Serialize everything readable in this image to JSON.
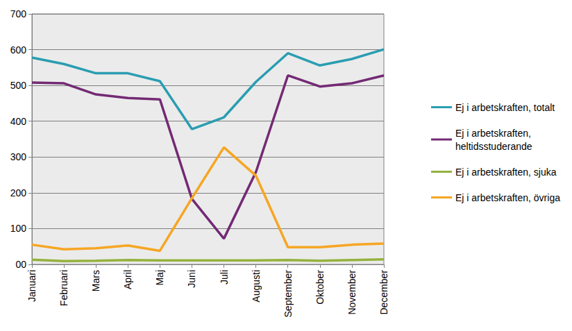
{
  "chart_data": {
    "type": "line",
    "categories": [
      "Januari",
      "Februari",
      "Mars",
      "April",
      "Maj",
      "Juni",
      "Juli",
      "Augusti",
      "September",
      "Oktober",
      "November",
      "December"
    ],
    "series": [
      {
        "name": "Ej i arbetskraften, totalt",
        "color": "#2a9db1",
        "values": [
          578,
          560,
          534,
          534,
          512,
          378,
          411,
          510,
          590,
          556,
          574,
          601
        ]
      },
      {
        "name": "Ej i arbetskraften, heltidsstuderande",
        "color": "#732a74",
        "values": [
          508,
          506,
          475,
          465,
          461,
          183,
          72,
          258,
          528,
          497,
          506,
          528
        ]
      },
      {
        "name": "Ej i arbetskraften, sjuka",
        "color": "#95b23d",
        "values": [
          13,
          9,
          10,
          12,
          11,
          11,
          11,
          11,
          12,
          10,
          12,
          14
        ]
      },
      {
        "name": "Ej i arbetskraften, övriga",
        "color": "#f6a623",
        "values": [
          55,
          42,
          45,
          53,
          38,
          185,
          327,
          248,
          48,
          48,
          55,
          58
        ]
      }
    ],
    "ylim": [
      0,
      700
    ],
    "yticks": [
      {
        "value": 0,
        "label": "00"
      },
      100,
      200,
      300,
      400,
      500,
      600,
      700
    ],
    "grid": true,
    "legend": "right"
  }
}
